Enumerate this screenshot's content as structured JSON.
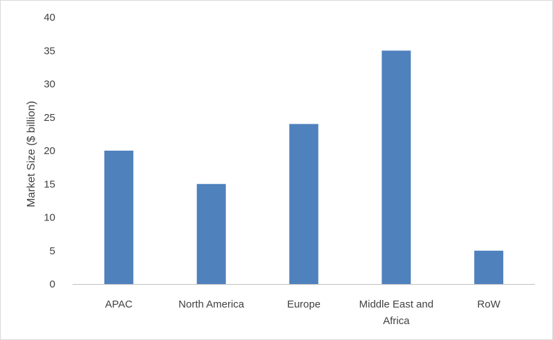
{
  "chart_data": {
    "type": "bar",
    "title": "",
    "xlabel": "",
    "ylabel": "Market Size ($ billion)",
    "categories": [
      "APAC",
      "North America",
      "Europe",
      "Middle East and Africa",
      "RoW"
    ],
    "category_lines": [
      [
        "APAC"
      ],
      [
        "North America"
      ],
      [
        "Europe"
      ],
      [
        "Middle East and",
        "Africa"
      ],
      [
        "RoW"
      ]
    ],
    "values": [
      20,
      15,
      24,
      35,
      5
    ],
    "ylim": [
      0,
      40
    ],
    "yticks": [
      0,
      5,
      10,
      15,
      20,
      25,
      30,
      35,
      40
    ],
    "grid": false,
    "legend": "none",
    "bar_color": "#4f81bd",
    "axis_color": "#bfbfbf",
    "text_color": "#404040"
  }
}
